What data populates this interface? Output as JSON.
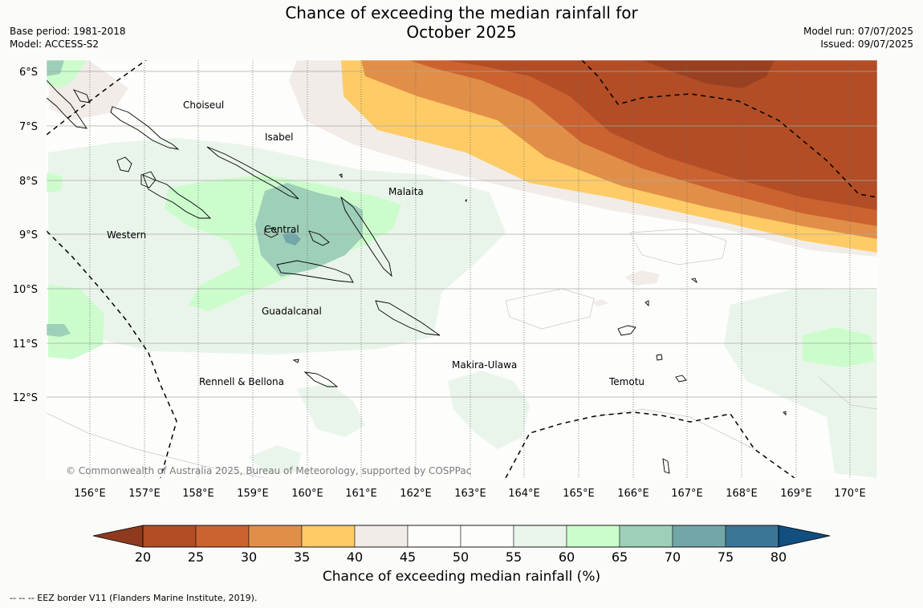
{
  "title_line1": "Chance of exceeding the median rainfall for",
  "title_line2": "October 2025",
  "base_period": "Base period: 1981-2018",
  "model": "Model: ACCESS-S2",
  "model_run": "Model run: 07/07/2025",
  "issued": "Issued: 09/07/2025",
  "lat_labels": [
    "6°S",
    "7°S",
    "8°S",
    "9°S",
    "10°S",
    "11°S",
    "12°S"
  ],
  "lon_labels": [
    "156°E",
    "157°E",
    "158°E",
    "159°E",
    "160°E",
    "161°E",
    "162°E",
    "163°E",
    "164°E",
    "165°E",
    "166°E",
    "167°E",
    "168°E",
    "169°E",
    "170°E"
  ],
  "places": {
    "choiseul": "Choiseul",
    "isabel": "Isabel",
    "malaita": "Malaita",
    "western": "Western",
    "central": "Central",
    "guadalcanal": "Guadalcanal",
    "makira": "Makira-Ulawa",
    "rennell": "Rennell & Bellona",
    "temotu": "Temotu"
  },
  "copyright": "© Commonwealth of Australia 2025, Bureau of Meteorology, supported by COSPPac",
  "colorbar": {
    "title": "Chance of exceeding median rainfall (%)",
    "ticks": [
      "20",
      "25",
      "30",
      "35",
      "40",
      "45",
      "50",
      "55",
      "60",
      "65",
      "70",
      "75",
      "80"
    ],
    "colors": [
      "#b24d25",
      "#cb6230",
      "#e18f48",
      "#fecb66",
      "#f1ece8",
      "#fdfdfc",
      "#fdfdfc",
      "#e9f5ea",
      "#ccfccc",
      "#9ecfb9",
      "#72a6a8",
      "#3d7597"
    ],
    "under_color": "#8e3a1f",
    "over_color": "#124e80"
  },
  "eez_note": "--  --  -- EEZ border V11 (Flanders Marine Institute, 2019)."
}
